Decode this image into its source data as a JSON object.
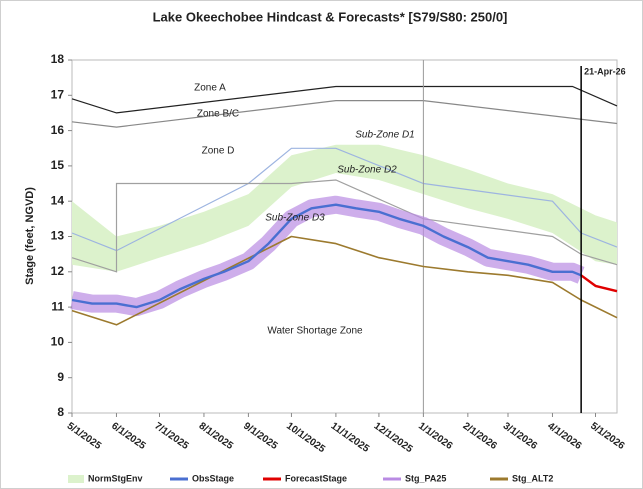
{
  "chart_data": {
    "type": "line",
    "title": "Lake Okeechobee Hindcast & Forecasts* [S79/S80: 250/0]",
    "y_label": "Stage (feet, NGVD)",
    "xlim": [
      "2025-05-01",
      "2026-05-16"
    ],
    "ylim": [
      8,
      18
    ],
    "yticks": [
      8,
      9,
      10,
      11,
      12,
      13,
      14,
      15,
      16,
      17,
      18
    ],
    "xticks": [
      {
        "value": "2025-05-01",
        "label": "5/1/2025"
      },
      {
        "value": "2025-06-01",
        "label": "6/1/2025"
      },
      {
        "value": "2025-07-01",
        "label": "7/1/2025"
      },
      {
        "value": "2025-08-01",
        "label": "8/1/2025"
      },
      {
        "value": "2025-09-01",
        "label": "9/1/2025"
      },
      {
        "value": "2025-10-01",
        "label": "10/1/2025"
      },
      {
        "value": "2025-11-01",
        "label": "11/1/2025"
      },
      {
        "value": "2025-12-01",
        "label": "12/1/2025"
      },
      {
        "value": "2026-01-01",
        "label": "1/1/2026"
      },
      {
        "value": "2026-02-01",
        "label": "2/1/2026"
      },
      {
        "value": "2026-03-01",
        "label": "3/1/2026"
      },
      {
        "value": "2026-04-01",
        "label": "4/1/2026"
      },
      {
        "value": "2026-05-01",
        "label": "5/1/2026"
      }
    ],
    "series": [
      {
        "name": "NormStgEnv",
        "color": "#dcf2cc",
        "x": [
          "2025-05-01",
          "2025-06-01",
          "2025-07-01",
          "2025-08-01",
          "2025-09-01",
          "2025-10-01",
          "2025-11-01",
          "2025-12-01",
          "2026-01-01",
          "2026-02-01",
          "2026-03-01",
          "2026-04-01",
          "2026-05-01",
          "2026-05-16"
        ],
        "low": [
          12.2,
          12.0,
          12.4,
          12.8,
          13.3,
          14.4,
          14.8,
          14.6,
          14.2,
          13.8,
          13.5,
          13.1,
          12.3,
          12.2
        ],
        "high": [
          14.0,
          13.0,
          13.3,
          13.7,
          14.2,
          15.3,
          15.6,
          15.6,
          15.3,
          14.9,
          14.5,
          14.2,
          13.6,
          13.4
        ]
      },
      {
        "name": "ObsStage",
        "color": "#4a6fd1",
        "x": [
          "2025-05-01",
          "2025-05-15",
          "2025-06-01",
          "2025-06-15",
          "2025-07-01",
          "2025-07-15",
          "2025-08-01",
          "2025-08-15",
          "2025-09-01",
          "2025-09-15",
          "2025-10-01",
          "2025-10-15",
          "2025-11-01",
          "2025-11-15",
          "2025-12-01",
          "2025-12-15",
          "2026-01-01",
          "2026-01-15",
          "2026-02-01",
          "2026-02-15",
          "2026-03-01",
          "2026-03-15",
          "2026-04-01",
          "2026-04-15",
          "2026-04-21"
        ],
        "values": [
          11.2,
          11.1,
          11.1,
          11.0,
          11.2,
          11.5,
          11.8,
          12.0,
          12.3,
          12.8,
          13.5,
          13.8,
          13.9,
          13.8,
          13.7,
          13.5,
          13.3,
          13.0,
          12.7,
          12.4,
          12.3,
          12.2,
          12.0,
          12.0,
          11.9
        ]
      },
      {
        "name": "ForecastStage",
        "color": "#e00000",
        "x": [
          "2026-04-21",
          "2026-05-01",
          "2026-05-16"
        ],
        "values": [
          11.9,
          11.6,
          11.45
        ]
      },
      {
        "name": "Stg_PA25",
        "color": "#b98be3",
        "x": [
          "2025-05-01",
          "2025-05-15",
          "2025-06-01",
          "2025-06-15",
          "2025-07-01",
          "2025-07-15",
          "2025-08-01",
          "2025-08-15",
          "2025-09-01",
          "2025-09-15",
          "2025-10-01",
          "2025-10-15",
          "2025-11-01",
          "2025-11-15",
          "2025-12-01",
          "2025-12-15",
          "2026-01-01",
          "2026-01-15",
          "2026-02-01",
          "2026-02-15",
          "2026-03-01",
          "2026-03-15",
          "2026-04-01",
          "2026-04-15",
          "2026-04-21"
        ],
        "values": [
          11.2,
          11.1,
          11.1,
          11.0,
          11.2,
          11.5,
          11.8,
          12.0,
          12.3,
          12.8,
          13.5,
          13.8,
          13.9,
          13.8,
          13.7,
          13.5,
          13.3,
          13.0,
          12.7,
          12.4,
          12.3,
          12.2,
          12.0,
          12.0,
          11.9
        ]
      },
      {
        "name": "Stg_ALT2",
        "color": "#9c7a2e",
        "x": [
          "2025-05-01",
          "2025-06-01",
          "2025-10-01",
          "2025-11-01",
          "2025-12-01",
          "2026-01-01",
          "2026-02-01",
          "2026-03-01",
          "2026-04-01",
          "2026-04-21",
          "2026-05-16"
        ],
        "values": [
          10.9,
          10.5,
          13.0,
          12.8,
          12.4,
          12.15,
          12.0,
          11.9,
          11.7,
          11.2,
          10.7
        ]
      }
    ],
    "reference_lines": [
      {
        "color": "#222222",
        "x": [
          "2025-05-01",
          "2025-06-01",
          "2025-11-01",
          "2026-04-15",
          "2026-05-16"
        ],
        "values": [
          16.9,
          16.5,
          17.25,
          17.25,
          16.7
        ]
      },
      {
        "color": "#888888",
        "x": [
          "2025-05-01",
          "2025-06-01",
          "2025-11-01",
          "2026-01-01",
          "2026-05-16"
        ],
        "values": [
          16.25,
          16.1,
          16.85,
          16.85,
          16.2
        ]
      },
      {
        "color": "#9db4e0",
        "x": [
          "2025-05-01",
          "2025-06-01",
          "2025-06-01",
          "2025-09-01",
          "2025-10-01",
          "2025-11-01",
          "2026-01-01",
          "2026-04-01",
          "2026-04-21",
          "2026-05-16"
        ],
        "values": [
          13.1,
          12.6,
          12.6,
          14.5,
          15.5,
          15.5,
          14.5,
          14.0,
          13.1,
          12.7
        ]
      },
      {
        "color": "#a0a0a0",
        "x": [
          "2025-05-01",
          "2025-06-01",
          "2025-06-01",
          "2025-10-01",
          "2025-11-01",
          "2026-01-01",
          "2026-04-01",
          "2026-04-21",
          "2026-05-16"
        ],
        "values": [
          12.4,
          12.0,
          14.5,
          14.5,
          14.6,
          13.5,
          13.0,
          12.5,
          12.2
        ]
      }
    ],
    "annotations": [
      "Zone A",
      "Zone B/C",
      "Zone D",
      "Sub-Zone D1",
      "Sub-Zone D2",
      "Sub-Zone D3",
      "Water Shortage Zone"
    ],
    "marker": {
      "value": "2026-04-21",
      "label": "21-Apr-26"
    }
  }
}
